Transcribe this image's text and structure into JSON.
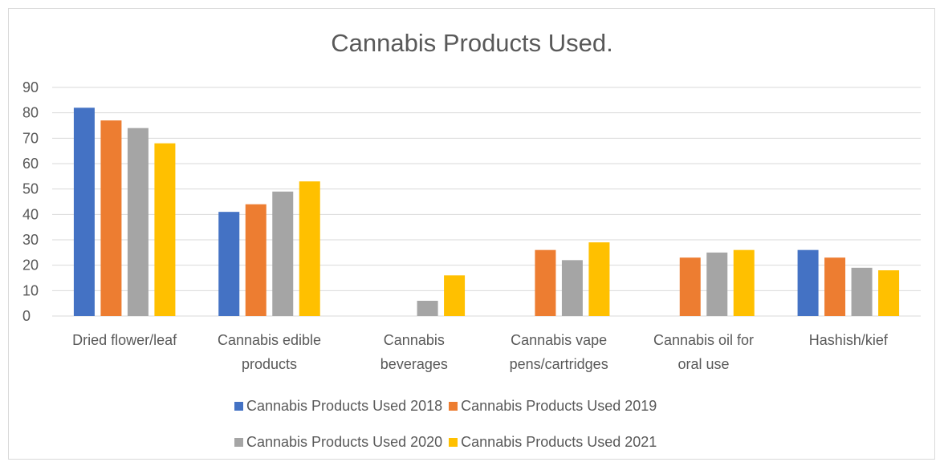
{
  "chart_data": {
    "type": "bar",
    "title": "Cannabis Products Used.",
    "xlabel": "",
    "ylabel": "",
    "ylim": [
      0,
      90
    ],
    "yticks": [
      0,
      10,
      20,
      30,
      40,
      50,
      60,
      70,
      80,
      90
    ],
    "grid": true,
    "legend_position": "bottom",
    "categories": [
      [
        "Dried flower/leaf"
      ],
      [
        "Cannabis edible",
        "products"
      ],
      [
        "Cannabis",
        "beverages"
      ],
      [
        "Cannabis vape",
        "pens/cartridges"
      ],
      [
        "Cannabis oil for",
        "oral use"
      ],
      [
        "Hashish/kief"
      ]
    ],
    "series": [
      {
        "name": "Cannabis Products Used 2018",
        "color": "#4472c4",
        "values": [
          82,
          41,
          null,
          null,
          null,
          26
        ]
      },
      {
        "name": "Cannabis Products Used 2019",
        "color": "#ed7d31",
        "values": [
          77,
          44,
          null,
          26,
          23,
          23
        ]
      },
      {
        "name": "Cannabis Products Used 2020",
        "color": "#a5a5a5",
        "values": [
          74,
          49,
          6,
          22,
          25,
          19
        ]
      },
      {
        "name": "Cannabis Products Used 2021",
        "color": "#ffc000",
        "values": [
          68,
          53,
          16,
          29,
          26,
          18
        ]
      }
    ]
  }
}
